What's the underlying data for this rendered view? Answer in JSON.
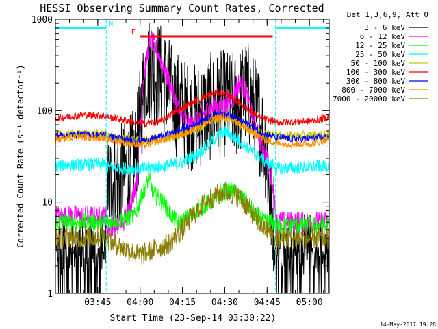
{
  "chart_data": {
    "type": "line",
    "title": "HESSI Observing Summary Count Rates, Corrected",
    "ylabel": "Corrected Count Rate (s⁻¹ detector⁻¹)",
    "xlabel": "Start Time (23-Sep-14 03:30:22)",
    "date_stamp": "14-May-2017 19:28",
    "y_scale": "log",
    "ylim": [
      1,
      1000
    ],
    "xlim_minutes_after_0330": [
      0,
      97
    ],
    "y_ticks": [
      {
        "value": 1,
        "label": "1"
      },
      {
        "value": 10,
        "label": "10"
      },
      {
        "value": 100,
        "label": "100"
      },
      {
        "value": 1000,
        "label": "1000"
      }
    ],
    "x_ticks": [
      {
        "minute": 15,
        "label": "03:45"
      },
      {
        "minute": 30,
        "label": "04:00"
      },
      {
        "minute": 45,
        "label": "04:15"
      },
      {
        "minute": 60,
        "label": "04:30"
      },
      {
        "minute": 75,
        "label": "04:45"
      },
      {
        "minute": 90,
        "label": "05:00"
      }
    ],
    "legend": {
      "placement": "right",
      "header": "Det 1,3,6,9, Att 0",
      "entries": [
        {
          "label": "3 - 6 keV",
          "color": "#000000"
        },
        {
          "label": "6 - 12 keV",
          "color": "#ff00ff"
        },
        {
          "label": "12 - 25 keV",
          "color": "#00ff00"
        },
        {
          "label": "25 - 50 keV",
          "color": "#00ffff"
        },
        {
          "label": "50 - 100 keV",
          "color": "#c8c800"
        },
        {
          "label": "100 - 300 keV",
          "color": "#ff0000"
        },
        {
          "label": "300 - 800 keV",
          "color": "#0000ff"
        },
        {
          "label": "800 - 7000 keV",
          "color": "#ff8c00"
        },
        {
          "label": "7000 - 20000 keV",
          "color": "#8b7d00"
        }
      ]
    },
    "flags": [
      {
        "label": "N",
        "start": 0,
        "end": 18,
        "color": "#00ffff",
        "y": 800
      },
      {
        "label": "",
        "start": 78,
        "end": 97,
        "color": "#00ffff",
        "y": 800
      },
      {
        "label": "F",
        "start": 30,
        "end": 77,
        "color": "#ff0000",
        "y": 650
      }
    ],
    "gaps": [
      18,
      78
    ],
    "series": [
      {
        "name": "3 - 6 keV",
        "color": "#000000",
        "noise": 0.6,
        "points": [
          [
            0,
            2
          ],
          [
            17.9,
            2
          ],
          [
            18,
            15
          ],
          [
            25,
            20
          ],
          [
            28,
            28
          ],
          [
            29,
            40
          ],
          [
            31,
            150
          ],
          [
            32,
            260
          ],
          [
            33,
            290
          ],
          [
            35,
            260
          ],
          [
            38,
            230
          ],
          [
            42,
            130
          ],
          [
            45,
            100
          ],
          [
            48,
            85
          ],
          [
            50,
            85
          ],
          [
            55,
            110
          ],
          [
            60,
            120
          ],
          [
            64,
            110
          ],
          [
            67,
            150
          ],
          [
            68,
            160
          ],
          [
            70,
            110
          ],
          [
            72,
            85
          ],
          [
            74,
            50
          ],
          [
            75,
            30
          ],
          [
            76,
            10
          ],
          [
            77.9,
            5
          ],
          [
            78,
            2
          ],
          [
            97,
            2
          ]
        ]
      },
      {
        "name": "6 - 12 keV",
        "color": "#ff00ff",
        "noise": 0.12,
        "points": [
          [
            0,
            7
          ],
          [
            17.9,
            7
          ],
          [
            18,
            5
          ],
          [
            24,
            6
          ],
          [
            27,
            10
          ],
          [
            29,
            20
          ],
          [
            30,
            60
          ],
          [
            31,
            200
          ],
          [
            33,
            500
          ],
          [
            34,
            600
          ],
          [
            36,
            450
          ],
          [
            40,
            220
          ],
          [
            43,
            120
          ],
          [
            45,
            80
          ],
          [
            48,
            70
          ],
          [
            52,
            90
          ],
          [
            56,
            110
          ],
          [
            60,
            110
          ],
          [
            63,
            140
          ],
          [
            65,
            200
          ],
          [
            67,
            170
          ],
          [
            69,
            110
          ],
          [
            72,
            50
          ],
          [
            75,
            30
          ],
          [
            77,
            15
          ],
          [
            77.9,
            8
          ],
          [
            78,
            6
          ],
          [
            97,
            6
          ]
        ]
      },
      {
        "name": "12 - 25 keV",
        "color": "#00ff00",
        "noise": 0.1,
        "points": [
          [
            0,
            6
          ],
          [
            17.9,
            6
          ],
          [
            18,
            6
          ],
          [
            28,
            7
          ],
          [
            32,
            15
          ],
          [
            33,
            18
          ],
          [
            35,
            12
          ],
          [
            38,
            10
          ],
          [
            40,
            8
          ],
          [
            43,
            6
          ],
          [
            45,
            6
          ],
          [
            50,
            8
          ],
          [
            55,
            10
          ],
          [
            60,
            13
          ],
          [
            63,
            13
          ],
          [
            66,
            11
          ],
          [
            70,
            8
          ],
          [
            74,
            6
          ],
          [
            77.9,
            6
          ],
          [
            78,
            5.5
          ],
          [
            97,
            5.5
          ]
        ]
      },
      {
        "name": "25 - 50 keV",
        "color": "#00ffff",
        "noise": 0.07,
        "points": [
          [
            0,
            25
          ],
          [
            17.9,
            26
          ],
          [
            18,
            24
          ],
          [
            30,
            23
          ],
          [
            40,
            25
          ],
          [
            45,
            27
          ],
          [
            50,
            33
          ],
          [
            55,
            45
          ],
          [
            58,
            55
          ],
          [
            60,
            60
          ],
          [
            63,
            52
          ],
          [
            66,
            45
          ],
          [
            70,
            35
          ],
          [
            74,
            28
          ],
          [
            77.9,
            25
          ],
          [
            78,
            23
          ],
          [
            97,
            25
          ]
        ]
      },
      {
        "name": "50 - 100 keV",
        "color": "#c8c800",
        "noise": 0.05,
        "points": [
          [
            0,
            54
          ],
          [
            17.9,
            56
          ],
          [
            18,
            52
          ],
          [
            30,
            47
          ],
          [
            40,
            50
          ],
          [
            50,
            62
          ],
          [
            55,
            78
          ],
          [
            60,
            85
          ],
          [
            63,
            78
          ],
          [
            66,
            68
          ],
          [
            70,
            60
          ],
          [
            74,
            55
          ],
          [
            77.9,
            54
          ],
          [
            78,
            53
          ],
          [
            97,
            54
          ]
        ]
      },
      {
        "name": "100 - 300 keV",
        "color": "#ff0000",
        "noise": 0.04,
        "points": [
          [
            0,
            82
          ],
          [
            10,
            90
          ],
          [
            17.9,
            88
          ],
          [
            18,
            86
          ],
          [
            25,
            78
          ],
          [
            30,
            72
          ],
          [
            37,
            75
          ],
          [
            42,
            95
          ],
          [
            48,
            120
          ],
          [
            54,
            145
          ],
          [
            58,
            160
          ],
          [
            61,
            150
          ],
          [
            64,
            130
          ],
          [
            68,
            105
          ],
          [
            72,
            85
          ],
          [
            76,
            78
          ],
          [
            77.9,
            76
          ],
          [
            78,
            74
          ],
          [
            85,
            75
          ],
          [
            92,
            78
          ],
          [
            97,
            85
          ]
        ]
      },
      {
        "name": "300 - 800 keV",
        "color": "#0000ff",
        "noise": 0.04,
        "points": [
          [
            0,
            53
          ],
          [
            8,
            55
          ],
          [
            17.9,
            54
          ],
          [
            18,
            52
          ],
          [
            25,
            48
          ],
          [
            32,
            47
          ],
          [
            40,
            55
          ],
          [
            45,
            62
          ],
          [
            50,
            72
          ],
          [
            55,
            85
          ],
          [
            58,
            92
          ],
          [
            61,
            90
          ],
          [
            64,
            82
          ],
          [
            68,
            72
          ],
          [
            72,
            60
          ],
          [
            76,
            53
          ],
          [
            77.9,
            52
          ],
          [
            78,
            51
          ],
          [
            85,
            49
          ],
          [
            92,
            50
          ],
          [
            97,
            52
          ]
        ]
      },
      {
        "name": "800 - 7000 keV",
        "color": "#ff8c00",
        "noise": 0.04,
        "points": [
          [
            0,
            48
          ],
          [
            8,
            52
          ],
          [
            17.9,
            50
          ],
          [
            18,
            49
          ],
          [
            25,
            44
          ],
          [
            32,
            42
          ],
          [
            40,
            50
          ],
          [
            45,
            55
          ],
          [
            50,
            65
          ],
          [
            55,
            78
          ],
          [
            58,
            85
          ],
          [
            61,
            82
          ],
          [
            64,
            75
          ],
          [
            68,
            62
          ],
          [
            72,
            52
          ],
          [
            76,
            46
          ],
          [
            77.9,
            45
          ],
          [
            78,
            44
          ],
          [
            85,
            43
          ],
          [
            92,
            44
          ],
          [
            97,
            48
          ]
        ]
      },
      {
        "name": "7000 - 20000 keV",
        "color": "#8b7d00",
        "noise": 0.12,
        "points": [
          [
            0,
            4
          ],
          [
            17.9,
            4.2
          ],
          [
            18,
            4
          ],
          [
            25,
            3
          ],
          [
            30,
            2.6
          ],
          [
            35,
            3
          ],
          [
            40,
            3.5
          ],
          [
            45,
            5
          ],
          [
            50,
            8
          ],
          [
            55,
            11
          ],
          [
            60,
            13
          ],
          [
            64,
            12
          ],
          [
            68,
            9
          ],
          [
            72,
            6
          ],
          [
            76,
            4.5
          ],
          [
            77.9,
            4
          ],
          [
            78,
            4
          ],
          [
            97,
            4
          ]
        ]
      }
    ]
  }
}
